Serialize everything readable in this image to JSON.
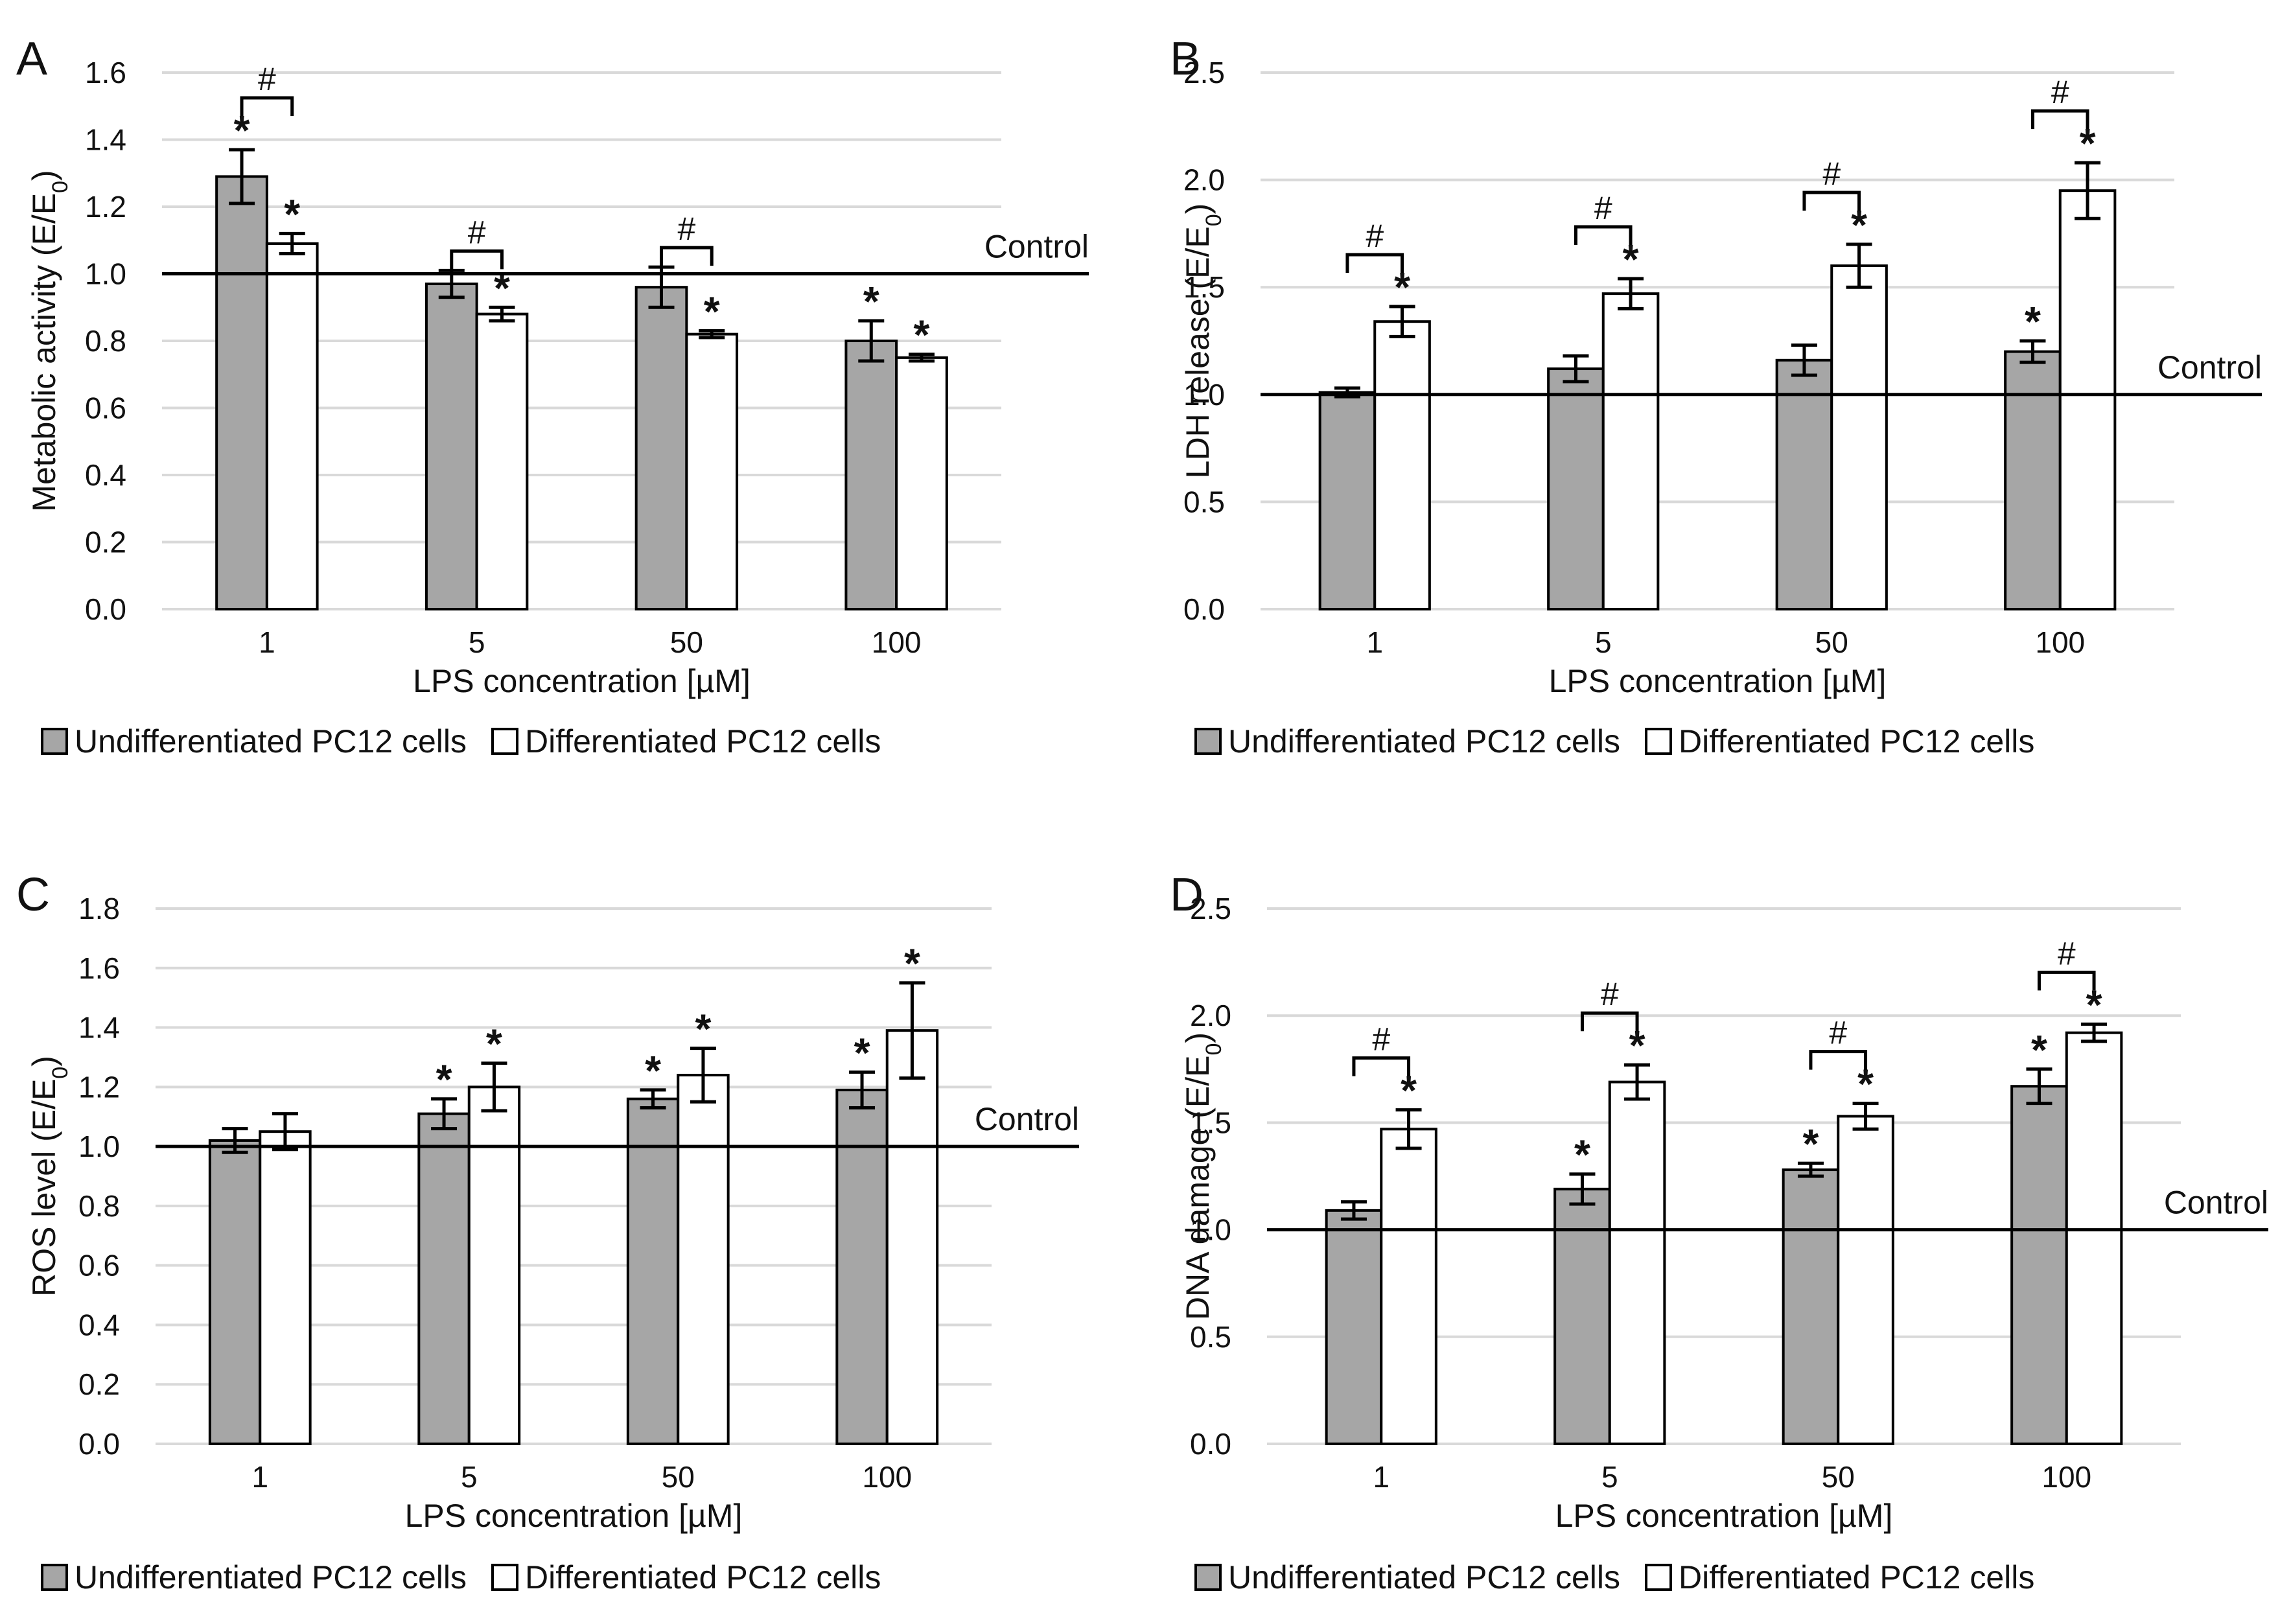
{
  "colors": {
    "undifferentiated": "#a6a6a6",
    "differentiated": "#ffffff",
    "stroke": "#000000",
    "grid": "#d9d9d9"
  },
  "chart_data": [
    {
      "type": "bar",
      "panel": "A",
      "ylabel_main": "Metabolic activity (E/E",
      "ylabel_sub": "0",
      "ylabel_tail": ")",
      "xlabel": "LPS concentration [µM]",
      "categories": [
        "1",
        "5",
        "50",
        "100"
      ],
      "ylim": [
        0,
        1.6
      ],
      "yticks": [
        0,
        0.2,
        0.4,
        0.6,
        0.8,
        1.0,
        1.2,
        1.4,
        1.6
      ],
      "ytick_decimals": 1,
      "grid": true,
      "reference_line": {
        "value": 1.0,
        "label": "Control"
      },
      "legend_position": "bottom-left",
      "series": [
        {
          "name": "Undifferentiated PC12 cells",
          "values": [
            1.29,
            0.97,
            0.96,
            0.8
          ],
          "errors": [
            0.08,
            0.04,
            0.06,
            0.06
          ],
          "stars": [
            true,
            false,
            false,
            true
          ]
        },
        {
          "name": "Differentiated PC12 cells",
          "values": [
            1.09,
            0.88,
            0.82,
            0.75
          ],
          "errors": [
            0.03,
            0.02,
            0.01,
            0.01
          ],
          "stars": [
            true,
            true,
            true,
            true
          ]
        }
      ],
      "hash_marks": [
        true,
        true,
        true,
        false
      ]
    },
    {
      "type": "bar",
      "panel": "B",
      "ylabel_main": "LDH release (E/E",
      "ylabel_sub": "0",
      "ylabel_tail": ")",
      "xlabel": "LPS concentration [µM]",
      "categories": [
        "1",
        "5",
        "50",
        "100"
      ],
      "ylim": [
        0,
        2.5
      ],
      "yticks": [
        0,
        0.5,
        1.0,
        1.5,
        2.0,
        2.5
      ],
      "ytick_decimals": 1,
      "grid": true,
      "reference_line": {
        "value": 1.0,
        "label": "Control"
      },
      "legend_position": "bottom-left",
      "series": [
        {
          "name": "Undifferentiated PC12 cells",
          "values": [
            1.01,
            1.12,
            1.16,
            1.2
          ],
          "errors": [
            0.02,
            0.06,
            0.07,
            0.05
          ],
          "stars": [
            false,
            false,
            false,
            true
          ]
        },
        {
          "name": "Differentiated PC12 cells",
          "values": [
            1.34,
            1.47,
            1.6,
            1.95
          ],
          "errors": [
            0.07,
            0.07,
            0.1,
            0.13
          ],
          "stars": [
            true,
            true,
            true,
            true
          ]
        }
      ],
      "hash_marks": [
        true,
        true,
        true,
        true
      ]
    },
    {
      "type": "bar",
      "panel": "C",
      "ylabel_main": "ROS level (E/E",
      "ylabel_sub": "0",
      "ylabel_tail": ")",
      "xlabel": "LPS concentration [µM]",
      "categories": [
        "1",
        "5",
        "50",
        "100"
      ],
      "ylim": [
        0,
        1.8
      ],
      "yticks": [
        0,
        0.2,
        0.4,
        0.6,
        0.8,
        1.0,
        1.2,
        1.4,
        1.6,
        1.8
      ],
      "ytick_decimals": 1,
      "grid": true,
      "reference_line": {
        "value": 1.0,
        "label": "Control"
      },
      "legend_position": "bottom-left",
      "series": [
        {
          "name": "Undifferentiated PC12 cells",
          "values": [
            1.02,
            1.11,
            1.16,
            1.19
          ],
          "errors": [
            0.04,
            0.05,
            0.03,
            0.06
          ],
          "stars": [
            false,
            true,
            true,
            true
          ]
        },
        {
          "name": "Differentiated PC12 cells",
          "values": [
            1.05,
            1.2,
            1.24,
            1.39
          ],
          "errors": [
            0.06,
            0.08,
            0.09,
            0.16
          ],
          "stars": [
            false,
            true,
            true,
            true
          ]
        }
      ],
      "hash_marks": [
        false,
        false,
        false,
        false
      ]
    },
    {
      "type": "bar",
      "panel": "D",
      "ylabel_main": "DNA damage (E/E",
      "ylabel_sub": "0",
      "ylabel_tail": ")",
      "xlabel": "LPS concentration [µM]",
      "categories": [
        "1",
        "5",
        "50",
        "100"
      ],
      "ylim": [
        0,
        2.5
      ],
      "yticks": [
        0,
        0.5,
        1.0,
        1.5,
        2.0,
        2.5
      ],
      "ytick_decimals": 1,
      "grid": true,
      "reference_line": {
        "value": 1.0,
        "label": "Control"
      },
      "legend_position": "bottom-left",
      "series": [
        {
          "name": "Undifferentiated PC12 cells",
          "values": [
            1.09,
            1.19,
            1.28,
            1.67
          ],
          "errors": [
            0.04,
            0.07,
            0.03,
            0.08
          ],
          "stars": [
            false,
            true,
            true,
            true
          ]
        },
        {
          "name": "Differentiated PC12 cells",
          "values": [
            1.47,
            1.69,
            1.53,
            1.92
          ],
          "errors": [
            0.09,
            0.08,
            0.06,
            0.04
          ],
          "stars": [
            true,
            true,
            true,
            true
          ]
        }
      ],
      "hash_marks": [
        true,
        true,
        true,
        true
      ]
    }
  ]
}
